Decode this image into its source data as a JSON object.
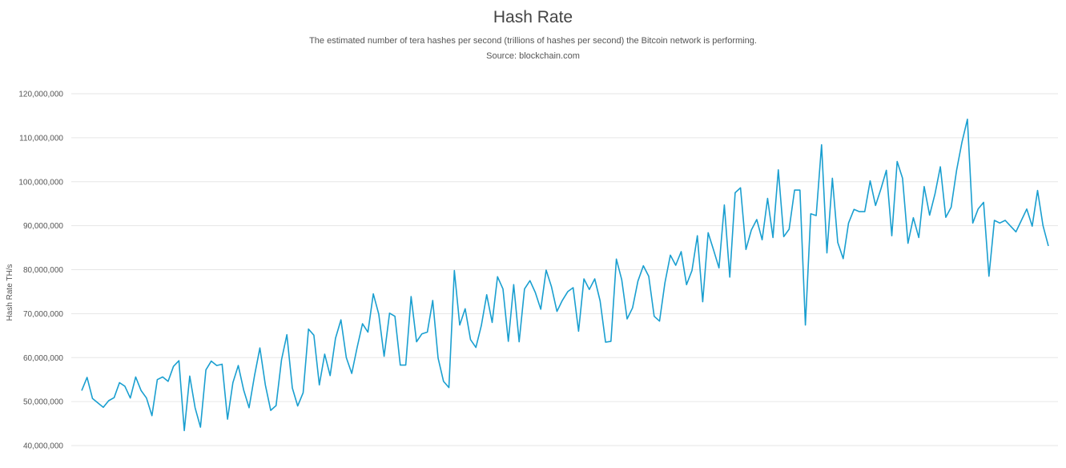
{
  "header": {
    "title": "Hash Rate",
    "subtitle": "The estimated number of tera hashes per second (trillions of hashes per second) the Bitcoin network is performing.",
    "source": "Source: blockchain.com"
  },
  "colors": {
    "line": "#1a9fd0",
    "grid": "#e6e6e6",
    "axis_text": "#555555"
  },
  "chart_data": {
    "type": "line",
    "title": "Hash Rate",
    "xlabel": "",
    "ylabel": "Hash Rate TH/s",
    "ylim": [
      40000000,
      120000000
    ],
    "yticks": [
      "40,000,000",
      "50,000,000",
      "60,000,000",
      "70,000,000",
      "80,000,000",
      "90,000,000",
      "100,000,000",
      "110,000,000",
      "120,000,000"
    ],
    "grid": true,
    "series": [
      {
        "values": [
          52500000,
          55500000,
          50700000,
          49700000,
          48700000,
          50200000,
          50900000,
          54300000,
          53500000,
          50800000,
          55600000,
          52500000,
          50800000,
          46800000,
          55000000,
          55600000,
          54600000,
          58000000,
          59300000,
          43400000,
          55800000,
          48600000,
          44200000,
          57200000,
          59200000,
          58200000,
          58500000,
          46000000,
          54300000,
          58200000,
          52600000,
          48600000,
          55900000,
          62200000,
          53800000,
          48000000,
          49100000,
          59500000,
          65200000,
          53100000,
          49000000,
          52000000,
          66500000,
          65100000,
          53800000,
          60800000,
          55900000,
          64400000,
          68600000,
          60000000,
          56400000,
          62300000,
          67700000,
          65800000,
          74500000,
          69900000,
          60300000,
          70100000,
          69400000,
          58300000,
          58300000,
          73900000,
          63600000,
          65400000,
          65800000,
          73000000,
          59900000,
          54600000,
          53200000,
          79800000,
          67400000,
          71100000,
          64100000,
          62300000,
          67300000,
          74300000,
          68000000,
          78400000,
          75600000,
          63700000,
          76600000,
          63600000,
          75600000,
          77500000,
          74800000,
          71000000,
          79900000,
          76100000,
          70500000,
          73000000,
          75000000,
          75900000,
          66000000,
          77900000,
          75500000,
          77900000,
          72900000,
          63500000,
          63700000,
          82400000,
          77700000,
          68800000,
          71300000,
          77400000,
          80900000,
          78500000,
          69400000,
          68300000,
          77000000,
          83300000,
          81000000,
          84100000,
          76600000,
          79800000,
          87700000,
          72700000,
          88400000,
          84500000,
          80400000,
          94700000,
          78300000,
          97500000,
          98600000,
          84600000,
          89000000,
          91400000,
          86800000,
          96200000,
          87300000,
          102700000,
          87500000,
          89200000,
          98100000,
          98100000,
          67400000,
          92700000,
          92300000,
          108400000,
          83800000,
          100800000,
          86200000,
          82500000,
          90600000,
          93700000,
          93200000,
          93200000,
          100200000,
          94600000,
          98400000,
          102600000,
          87700000,
          104600000,
          100800000,
          86000000,
          91800000,
          87300000,
          98900000,
          92400000,
          97200000,
          103400000,
          91900000,
          94200000,
          102600000,
          109000000,
          114200000,
          90600000,
          93800000,
          95300000,
          78500000,
          91200000,
          90600000,
          91200000,
          89900000,
          88600000,
          91200000,
          93800000,
          89900000,
          98000000,
          90000000,
          85400000
        ]
      }
    ]
  }
}
